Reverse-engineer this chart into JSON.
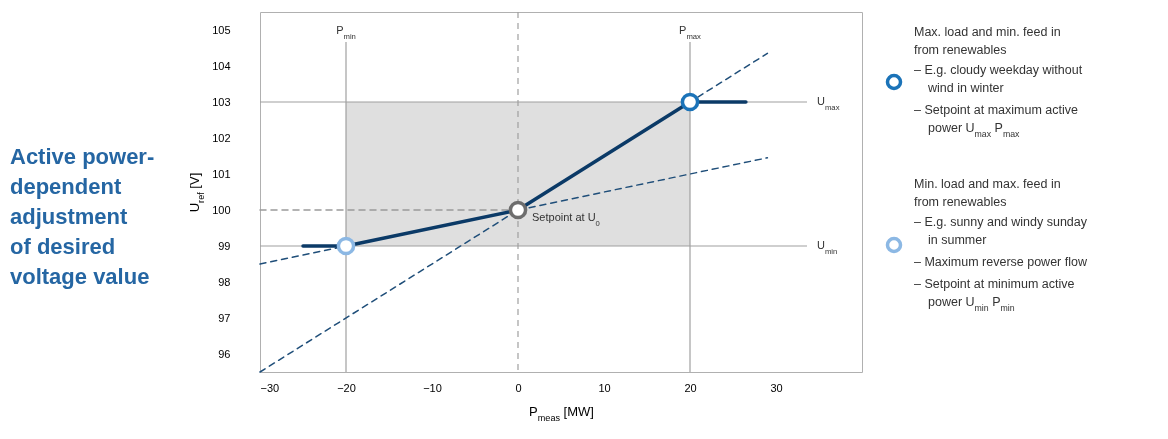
{
  "chart_data": {
    "type": "line",
    "title": "Active power-dependent adjustment of desired voltage value",
    "xlabel": "P$_{meas}$ [MW]",
    "ylabel": "U$_{ref}$ [V]",
    "xlim": [
      -30,
      40
    ],
    "xticks": [
      -30,
      -20,
      -10,
      0,
      10,
      20,
      30
    ],
    "ylim": [
      95.5,
      105.5
    ],
    "yticks": [
      96,
      97,
      98,
      99,
      100,
      101,
      102,
      103,
      104,
      105
    ],
    "grid": false,
    "legend": "right",
    "series": [
      {
        "x": [
          -20,
          20
        ],
        "values": [
          null,
          null
        ],
        "lower": [
          99,
          99
        ],
        "upper": [
          103,
          103
        ],
        "color": "#b8b8b8"
      },
      {
        "x": [
          -30,
          0
        ],
        "values": [
          100,
          100
        ],
        "color": "#9a9a9a",
        "line_style": "dashed"
      },
      {
        "x": [
          -30,
          29
        ],
        "values": [
          95.5,
          104.35
        ],
        "color": "#1f4e79",
        "line_style": "dashed"
      },
      {
        "x": [
          -30,
          29
        ],
        "values": [
          98.5,
          101.45
        ],
        "color": "#1f4e79",
        "line_style": "dashed"
      },
      {
        "x": [
          -25,
          -20,
          0,
          20,
          26.5
        ],
        "values": [
          99,
          99,
          100,
          103,
          103
        ],
        "color": "#0b3a67",
        "line_style": "solid"
      },
      {
        "type": "scatter",
        "name": "Max. load and min. feed in from renewables",
        "x": [
          20
        ],
        "values": [
          103
        ],
        "color": "#1b73b8",
        "marker": "circle"
      },
      {
        "type": "scatter",
        "name": "Min. load and max. feed in from renewables",
        "x": [
          -20
        ],
        "values": [
          99
        ],
        "color": "#8cb8e4",
        "marker": "circle"
      },
      {
        "type": "scatter",
        "x": [
          0
        ],
        "values": [
          100
        ],
        "color": "#6d6d6d",
        "marker": "circle"
      }
    ],
    "ref_lines": [
      {
        "axis": "x",
        "value": -20,
        "label": "P$_{min}$",
        "color": "#a0a0a0"
      },
      {
        "axis": "x",
        "value": 20,
        "label": "P$_{max}$",
        "color": "#a0a0a0"
      },
      {
        "axis": "x",
        "value": 0,
        "color": "#a0a0a0",
        "line_style": "dashed"
      },
      {
        "axis": "y",
        "value": 103,
        "label": "U$_{max}$",
        "color": "#a0a0a0"
      },
      {
        "axis": "y",
        "value": 99,
        "label": "U$_{min}$",
        "color": "#a0a0a0"
      }
    ],
    "annotations": [
      {
        "text": "Setpoint at U$_{0}$",
        "x": 0,
        "y": 100
      },
      "– E.g. cloudy weekday without wind in winter",
      "– Setpoint at maximum active power U$_{max}$ P$_{max}$",
      "– E.g. sunny and windy sunday in summer",
      "– Maximum reverse power flow",
      "– Setpoint at minimum active power U$_{min}$ P$_{min}$"
    ]
  }
}
